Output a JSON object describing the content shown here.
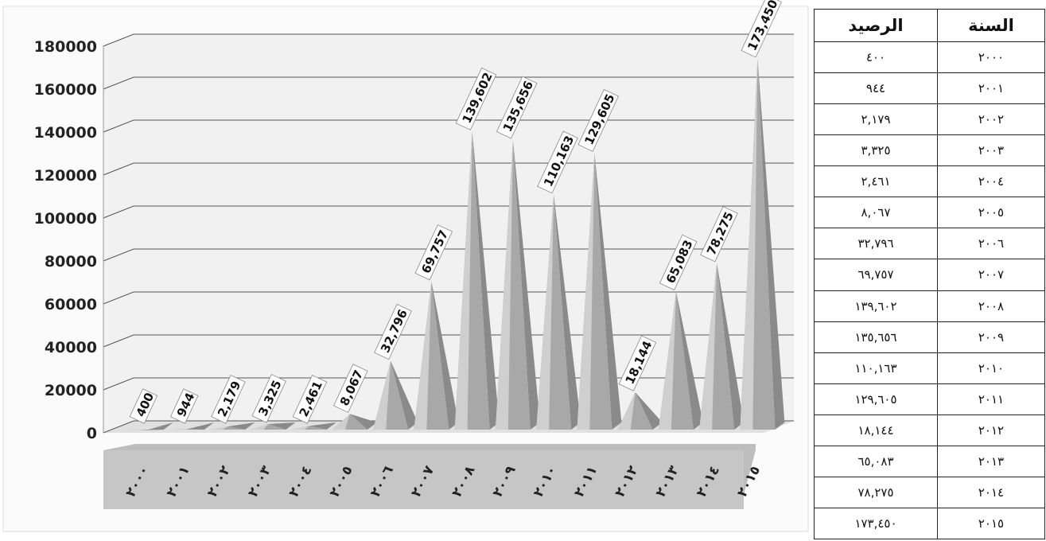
{
  "chart_data": {
    "type": "bar",
    "categories": [
      "٢٠٠٠",
      "٢٠٠١",
      "٢٠٠٢",
      "٢٠٠٣",
      "٢٠٠٤",
      "٢٠٠٥",
      "٢٠٠٦",
      "٢٠٠٧",
      "٢٠٠٨",
      "٢٠٠٩",
      "٢٠١٠",
      "٢٠١١",
      "٢٠١٢",
      "٢٠١٣",
      "٢٠١٤",
      "٢٠١٥"
    ],
    "values": [
      400,
      944,
      2179,
      3325,
      2461,
      8067,
      32796,
      69757,
      139602,
      135656,
      110163,
      129605,
      18144,
      65083,
      78275,
      173450
    ],
    "data_labels": [
      "400",
      "944",
      "2,179",
      "3,325",
      "2,461",
      "8,067",
      "32,796",
      "69,757",
      "139,602",
      "135,656",
      "110,163",
      "129,605",
      "18,144",
      "65,083",
      "78,275",
      "173,450"
    ],
    "y_ticks": [
      "0",
      "20000",
      "40000",
      "60000",
      "80000",
      "100000",
      "120000",
      "140000",
      "160000",
      "180000"
    ],
    "ylim": [
      0,
      180000
    ],
    "grid": true,
    "colors": {
      "bar": "#a8a8a8",
      "bar_light": "#cfcfcf",
      "bar_dark": "#8a8a8a",
      "grid": "#555555",
      "category_band": "#bdbdbd"
    }
  },
  "table": {
    "headers": {
      "year": "السنة",
      "balance": "الرصيد"
    },
    "rows": [
      {
        "year": "٢٠٠٠",
        "balance": "٤٠٠"
      },
      {
        "year": "٢٠٠١",
        "balance": "٩٤٤"
      },
      {
        "year": "٢٠٠٢",
        "balance": "٢,١٧٩"
      },
      {
        "year": "٢٠٠٣",
        "balance": "٣,٣٢٥"
      },
      {
        "year": "٢٠٠٤",
        "balance": "٢,٤٦١"
      },
      {
        "year": "٢٠٠٥",
        "balance": "٨,٠٦٧"
      },
      {
        "year": "٢٠٠٦",
        "balance": "٣٢,٧٩٦"
      },
      {
        "year": "٢٠٠٧",
        "balance": "٦٩,٧٥٧"
      },
      {
        "year": "٢٠٠٨",
        "balance": "١٣٩,٦٠٢"
      },
      {
        "year": "٢٠٠٩",
        "balance": "١٣٥,٦٥٦"
      },
      {
        "year": "٢٠١٠",
        "balance": "١١٠,١٦٣"
      },
      {
        "year": "٢٠١١",
        "balance": "١٢٩,٦٠٥"
      },
      {
        "year": "٢٠١٢",
        "balance": "١٨,١٤٤"
      },
      {
        "year": "٢٠١٣",
        "balance": "٦٥,٠٨٣"
      },
      {
        "year": "٢٠١٤",
        "balance": "٧٨,٢٧٥"
      },
      {
        "year": "٢٠١٥",
        "balance": "١٧٣,٤٥٠"
      }
    ]
  }
}
